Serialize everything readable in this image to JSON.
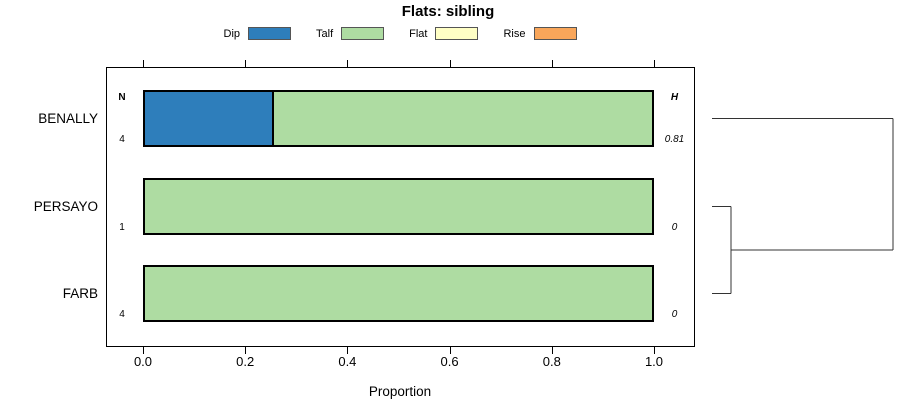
{
  "title": "Flats: sibling",
  "legend": {
    "items": [
      {
        "label": "Dip",
        "color": "#2E7EBB"
      },
      {
        "label": "Talf",
        "color": "#AEDCA2"
      },
      {
        "label": "Flat",
        "color": "#FFFFC5"
      },
      {
        "label": "Rise",
        "color": "#F9A65A"
      }
    ]
  },
  "chart_data": {
    "type": "bar",
    "orientation": "horizontal",
    "stacked": true,
    "title": "Flats: sibling",
    "xlabel": "Proportion",
    "xlim": [
      0,
      1
    ],
    "xticks": [
      {
        "label": "0.0",
        "value": 0.0
      },
      {
        "label": "0.2",
        "value": 0.2
      },
      {
        "label": "0.4",
        "value": 0.4
      },
      {
        "label": "0.6",
        "value": 0.6
      },
      {
        "label": "0.8",
        "value": 0.8
      },
      {
        "label": "1.0",
        "value": 1.0
      }
    ],
    "categories": [
      "Dip",
      "Talf",
      "Flat",
      "Rise"
    ],
    "colors": {
      "Dip": "#2E7EBB",
      "Talf": "#AEDCA2",
      "Flat": "#FFFFC5",
      "Rise": "#F9A65A"
    },
    "annotation_headers": {
      "n": "N",
      "h": "H"
    },
    "rows": [
      {
        "label": "BENALLY",
        "n": "4",
        "h": "0.81",
        "segments": [
          {
            "category": "Dip",
            "value": 0.25
          },
          {
            "category": "Talf",
            "value": 0.75
          }
        ]
      },
      {
        "label": "PERSAYO",
        "n": "1",
        "h": "0",
        "segments": [
          {
            "category": "Talf",
            "value": 1.0
          }
        ]
      },
      {
        "label": "FARB",
        "n": "4",
        "h": "0",
        "segments": [
          {
            "category": "Talf",
            "value": 1.0
          }
        ]
      }
    ],
    "dendrogram": {
      "leaves": [
        "BENALLY",
        "PERSAYO",
        "FARB"
      ],
      "merges": [
        {
          "children": [
            "PERSAYO",
            "FARB"
          ],
          "height": 0.105
        },
        {
          "children": [
            "BENALLY",
            "merge-0"
          ],
          "height": 1.0
        }
      ]
    }
  }
}
